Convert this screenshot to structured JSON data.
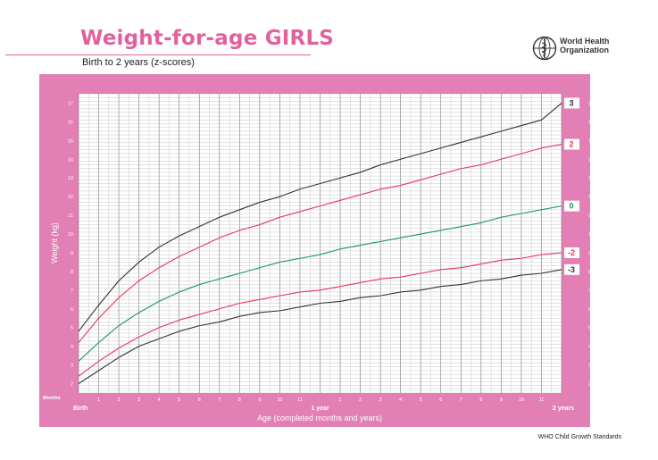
{
  "header": {
    "title": "Weight-for-age GIRLS",
    "subtitle": "Birth to 2 years (z-scores)",
    "org_name": "World Health\nOrganization"
  },
  "footer": {
    "text": "WHO Child Growth Standards"
  },
  "chart_data": {
    "type": "line",
    "ylabel": "Weight (kg)",
    "xlabel": "Age (completed months and years)",
    "x_unit_label": "Months",
    "xlim": [
      0,
      24
    ],
    "ylim": [
      1.5,
      17.5
    ],
    "y_ticks": [
      2,
      3,
      4,
      5,
      6,
      7,
      8,
      9,
      10,
      11,
      12,
      13,
      14,
      15,
      16,
      17
    ],
    "x_ticks": [
      {
        "month": 0,
        "label": "Birth",
        "strong": true
      },
      {
        "month": 1,
        "label": "1"
      },
      {
        "month": 2,
        "label": "2"
      },
      {
        "month": 3,
        "label": "3"
      },
      {
        "month": 4,
        "label": "4"
      },
      {
        "month": 5,
        "label": "5"
      },
      {
        "month": 6,
        "label": "6"
      },
      {
        "month": 7,
        "label": "7"
      },
      {
        "month": 8,
        "label": "8"
      },
      {
        "month": 9,
        "label": "9"
      },
      {
        "month": 10,
        "label": "10"
      },
      {
        "month": 11,
        "label": "11"
      },
      {
        "month": 12,
        "label": "1 year",
        "strong": true
      },
      {
        "month": 13,
        "label": "1"
      },
      {
        "month": 14,
        "label": "2"
      },
      {
        "month": 15,
        "label": "3"
      },
      {
        "month": 16,
        "label": "4"
      },
      {
        "month": 17,
        "label": "5"
      },
      {
        "month": 18,
        "label": "6"
      },
      {
        "month": 19,
        "label": "7"
      },
      {
        "month": 20,
        "label": "8"
      },
      {
        "month": 21,
        "label": "9"
      },
      {
        "month": 22,
        "label": "10"
      },
      {
        "month": 23,
        "label": "11"
      },
      {
        "month": 24,
        "label": "2 years",
        "strong": true
      }
    ],
    "x": [
      0,
      1,
      2,
      3,
      4,
      5,
      6,
      7,
      8,
      9,
      10,
      11,
      12,
      13,
      14,
      15,
      16,
      17,
      18,
      19,
      20,
      21,
      22,
      23,
      24
    ],
    "series": [
      {
        "name": "3",
        "color": "#333333",
        "values": [
          4.8,
          6.2,
          7.5,
          8.5,
          9.3,
          9.9,
          10.4,
          10.9,
          11.3,
          11.7,
          12.0,
          12.4,
          12.7,
          13.0,
          13.3,
          13.7,
          14.0,
          14.3,
          14.6,
          14.9,
          15.2,
          15.5,
          15.8,
          16.1,
          17.0
        ]
      },
      {
        "name": "2",
        "color": "#e8365a",
        "values": [
          4.2,
          5.5,
          6.6,
          7.5,
          8.2,
          8.8,
          9.3,
          9.8,
          10.2,
          10.5,
          10.9,
          11.2,
          11.5,
          11.8,
          12.1,
          12.4,
          12.6,
          12.9,
          13.2,
          13.5,
          13.7,
          14.0,
          14.3,
          14.6,
          14.8
        ]
      },
      {
        "name": "0",
        "color": "#1a9a57",
        "values": [
          3.2,
          4.2,
          5.1,
          5.8,
          6.4,
          6.9,
          7.3,
          7.6,
          7.9,
          8.2,
          8.5,
          8.7,
          8.9,
          9.2,
          9.4,
          9.6,
          9.8,
          10.0,
          10.2,
          10.4,
          10.6,
          10.9,
          11.1,
          11.3,
          11.5
        ]
      },
      {
        "name": "-2",
        "color": "#e8365a",
        "values": [
          2.4,
          3.2,
          3.9,
          4.5,
          5.0,
          5.4,
          5.7,
          6.0,
          6.3,
          6.5,
          6.7,
          6.9,
          7.0,
          7.2,
          7.4,
          7.6,
          7.7,
          7.9,
          8.1,
          8.2,
          8.4,
          8.6,
          8.7,
          8.9,
          9.0
        ]
      },
      {
        "name": "-3",
        "color": "#333333",
        "values": [
          2.0,
          2.7,
          3.4,
          4.0,
          4.4,
          4.8,
          5.1,
          5.3,
          5.6,
          5.8,
          5.9,
          6.1,
          6.3,
          6.4,
          6.6,
          6.7,
          6.9,
          7.0,
          7.2,
          7.3,
          7.5,
          7.6,
          7.8,
          7.9,
          8.1
        ]
      }
    ]
  },
  "colors": {
    "frame": "#e27fb5",
    "grid": "#999999",
    "title": "#e0619e"
  }
}
